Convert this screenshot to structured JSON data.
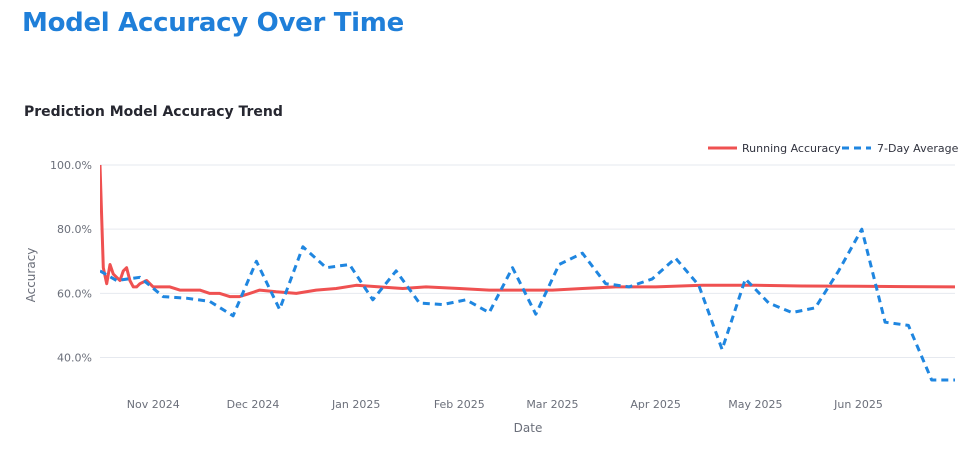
{
  "page": {
    "title": "Model Accuracy Over Time"
  },
  "chart_data": {
    "type": "line",
    "title": "Prediction Model Accuracy Trend",
    "xlabel": "Date",
    "ylabel": "Accuracy",
    "x_range": [
      "2024-10-16",
      "2025-06-30"
    ],
    "ylim": [
      33,
      100
    ],
    "yticks": [
      40,
      60,
      80,
      100
    ],
    "ytick_labels": [
      "40.0%",
      "60.0%",
      "80.0%",
      "100.0%"
    ],
    "xticks": [
      "2024-11-01",
      "2024-12-01",
      "2025-01-01",
      "2025-02-01",
      "2025-03-01",
      "2025-04-01",
      "2025-05-01",
      "2025-06-01"
    ],
    "xtick_labels": [
      "Nov 2024",
      "Dec 2024",
      "Jan 2025",
      "Feb 2025",
      "Mar 2025",
      "Apr 2025",
      "May 2025",
      "Jun 2025"
    ],
    "grid": true,
    "legend_position": "top-right",
    "colors": {
      "title": "#1f7fd9",
      "running": "#ef5151",
      "average": "#1f86e0",
      "grid": "#e6e9ef"
    },
    "series": [
      {
        "name": "Running Accuracy",
        "style": "solid",
        "x": [
          "2024-10-16",
          "2024-10-17",
          "2024-10-18",
          "2024-10-19",
          "2024-10-20",
          "2024-10-21",
          "2024-10-22",
          "2024-10-23",
          "2024-10-24",
          "2024-10-25",
          "2024-10-26",
          "2024-10-27",
          "2024-10-28",
          "2024-10-30",
          "2024-11-01",
          "2024-11-03",
          "2024-11-06",
          "2024-11-09",
          "2024-11-12",
          "2024-11-15",
          "2024-11-18",
          "2024-11-21",
          "2024-11-24",
          "2024-11-27",
          "2024-11-30",
          "2024-12-03",
          "2024-12-08",
          "2024-12-14",
          "2024-12-20",
          "2024-12-26",
          "2025-01-01",
          "2025-01-08",
          "2025-01-15",
          "2025-01-22",
          "2025-02-01",
          "2025-02-10",
          "2025-02-20",
          "2025-03-01",
          "2025-03-10",
          "2025-03-20",
          "2025-04-01",
          "2025-04-15",
          "2025-05-01",
          "2025-05-15",
          "2025-06-01",
          "2025-06-15",
          "2025-06-30"
        ],
        "y": [
          100,
          68,
          63,
          69,
          66,
          65,
          64,
          67,
          68,
          64,
          62,
          62,
          63,
          64,
          62,
          62,
          62,
          61,
          61,
          61,
          60,
          60,
          59,
          59,
          60,
          61,
          60.5,
          60,
          61,
          61.5,
          62.5,
          62,
          61.5,
          62,
          61.5,
          61,
          61,
          61,
          61.5,
          62,
          62,
          62.5,
          62.5,
          62.3,
          62.2,
          62.1,
          62
        ]
      },
      {
        "name": "7-Day Average",
        "style": "dashed",
        "x": [
          "2024-10-16",
          "2024-10-21",
          "2024-10-28",
          "2024-11-04",
          "2024-11-11",
          "2024-11-18",
          "2024-11-25",
          "2024-12-02",
          "2024-12-09",
          "2024-12-16",
          "2024-12-23",
          "2024-12-30",
          "2025-01-06",
          "2025-01-13",
          "2025-01-20",
          "2025-01-27",
          "2025-02-03",
          "2025-02-10",
          "2025-02-17",
          "2025-02-24",
          "2025-03-03",
          "2025-03-10",
          "2025-03-17",
          "2025-03-24",
          "2025-03-31",
          "2025-04-07",
          "2025-04-14",
          "2025-04-21",
          "2025-04-28",
          "2025-05-05",
          "2025-05-12",
          "2025-05-19",
          "2025-05-26",
          "2025-06-02",
          "2025-06-09",
          "2025-06-16",
          "2025-06-23",
          "2025-06-30"
        ],
        "y": [
          67,
          64,
          65,
          59,
          58.5,
          57.5,
          53,
          70,
          55,
          74.5,
          68,
          69,
          58,
          67,
          57,
          56.5,
          58,
          54,
          68,
          53.5,
          69,
          72.5,
          63,
          62,
          64.5,
          71,
          62.5,
          42.5,
          64.5,
          57,
          54,
          55.5,
          67,
          80,
          51,
          50,
          33,
          33
        ]
      }
    ]
  }
}
